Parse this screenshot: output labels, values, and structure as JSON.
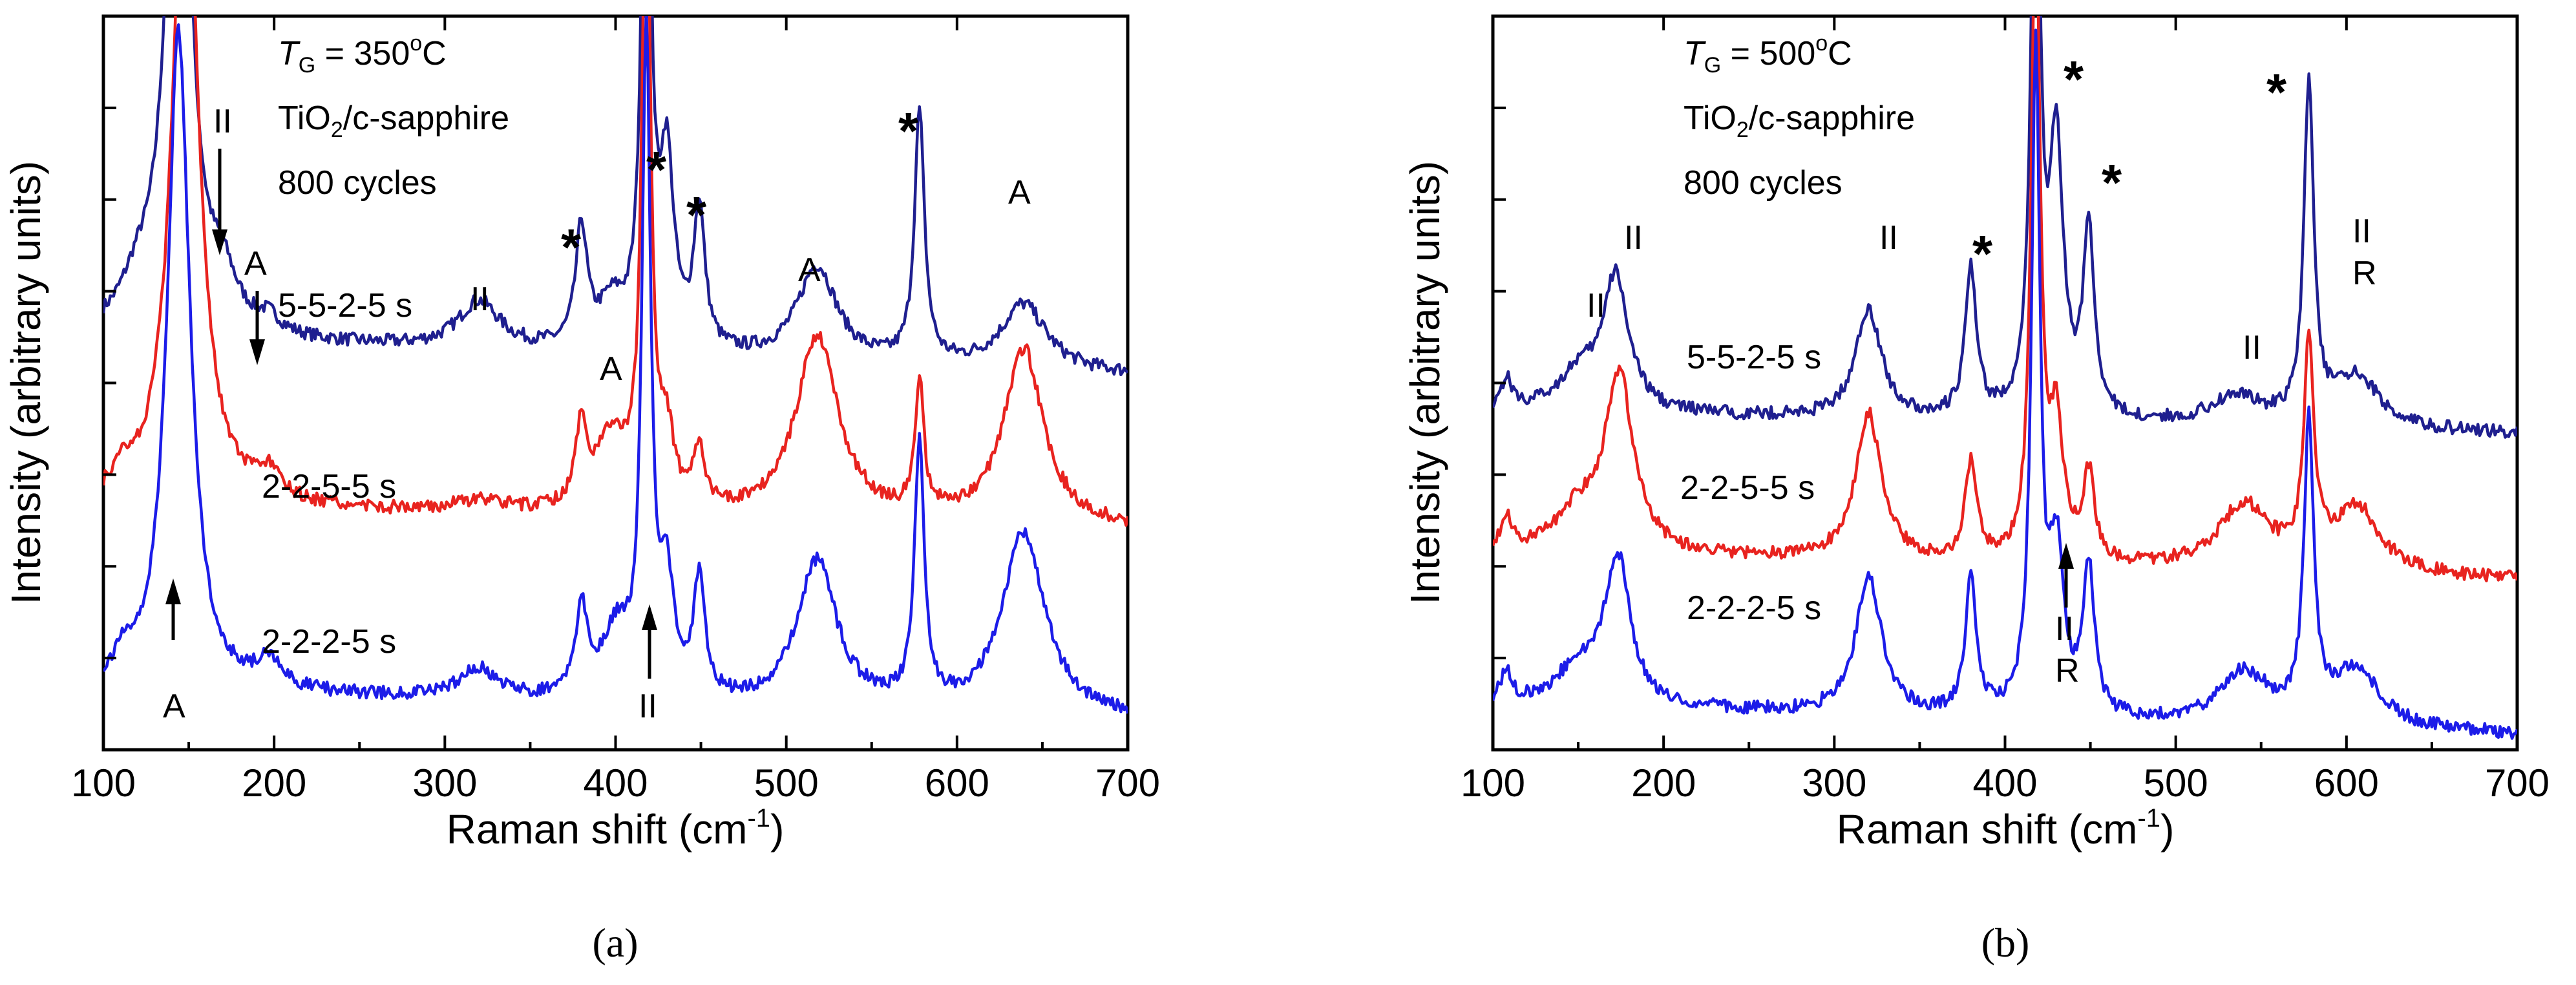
{
  "chart_data": [
    {
      "type": "line",
      "panel_label": "(a)",
      "xlabel": "Raman shift (cm",
      "xlabel_sup": "-1",
      "xlabel_end": ")",
      "ylabel": "Intensity (arbitrary units)",
      "xlim": [
        100,
        700
      ],
      "xticks": [
        100,
        200,
        300,
        400,
        500,
        600,
        700
      ],
      "info": {
        "tg_symbol": "T",
        "tg_sub": "G",
        "tg_value": " = 350",
        "tg_deg": "o",
        "tg_unit": "C",
        "material_a": "TiO",
        "material_sub": "2",
        "material_b": "/c-sapphire",
        "cycles": "800 cycles"
      },
      "series": [
        {
          "name": "5-5-2-5 s",
          "color": "#1f1f8f",
          "baseline": 0.56,
          "drift": 0.05,
          "peaks": [
            [
              120,
              0.05,
              12
            ],
            [
              144,
              0.9,
              8
            ],
            [
              170,
              0.06,
              10
            ],
            [
              197,
              0.02,
              8
            ],
            [
              320,
              0.065,
              15
            ],
            [
              380,
              0.16,
              4
            ],
            [
              398,
              0.06,
              10
            ],
            [
              418,
              0.9,
              3
            ],
            [
              430,
              0.25,
              5
            ],
            [
              449,
              0.19,
              4
            ],
            [
              518,
              0.13,
              14
            ],
            [
              578,
              0.34,
              3.5
            ],
            [
              639,
              0.09,
              16
            ]
          ]
        },
        {
          "name": "2-2-5-5 s",
          "color": "#e8231f",
          "baseline": 0.33,
          "drift": 0.03,
          "peaks": [
            [
              112,
              0.03,
              6
            ],
            [
              148,
              0.95,
              9
            ],
            [
              197,
              0.035,
              8
            ],
            [
              320,
              0.015,
              18
            ],
            [
              380,
              0.11,
              4
            ],
            [
              398,
              0.1,
              11
            ],
            [
              418,
              0.9,
              3
            ],
            [
              430,
              0.09,
              5
            ],
            [
              449,
              0.08,
              4
            ],
            [
              518,
              0.25,
              15
            ],
            [
              578,
              0.18,
              3
            ],
            [
              639,
              0.24,
              14
            ]
          ]
        },
        {
          "name": "2-2-2-5 s",
          "color": "#1c1ce8",
          "baseline": 0.08,
          "drift": 0.04,
          "peaks": [
            [
              112,
              0.03,
              6
            ],
            [
              144,
              0.9,
              8
            ],
            [
              197,
              0.04,
              8
            ],
            [
              320,
              0.04,
              14
            ],
            [
              380,
              0.12,
              4
            ],
            [
              400,
              0.09,
              10
            ],
            [
              418,
              0.9,
              3
            ],
            [
              430,
              0.15,
              5
            ],
            [
              449,
              0.16,
              4
            ],
            [
              518,
              0.2,
              14
            ],
            [
              578,
              0.35,
              3.5
            ],
            [
              639,
              0.25,
              15
            ]
          ]
        }
      ],
      "stars": [
        "*",
        "*",
        "*",
        "*"
      ],
      "labels": [
        "II",
        "A",
        "II",
        "A",
        "A",
        "A",
        "A",
        "II"
      ]
    },
    {
      "type": "line",
      "panel_label": "(b)",
      "xlabel": "Raman shift (cm",
      "xlabel_sup": "-1",
      "xlabel_end": ")",
      "ylabel": "Intensity (arbitrary units)",
      "xlim": [
        100,
        700
      ],
      "xticks": [
        100,
        200,
        300,
        400,
        500,
        600,
        700
      ],
      "info": {
        "tg_symbol": "T",
        "tg_sub": "G",
        "tg_value": " = 500",
        "tg_deg": "o",
        "tg_unit": "C",
        "material_a": "TiO",
        "material_sub": "2",
        "material_b": "/c-sapphire",
        "cycles": "800 cycles"
      },
      "series": [
        {
          "name": "5-5-2-5 s",
          "color": "#1f1f8f",
          "baseline": 0.46,
          "drift": 0.03,
          "peaks": [
            [
              108,
              0.04,
              4
            ],
            [
              150,
              0.05,
              15
            ],
            [
              172,
              0.18,
              9
            ],
            [
              320,
              0.15,
              9
            ],
            [
              380,
              0.2,
              4
            ],
            [
              418,
              0.9,
              3
            ],
            [
              430,
              0.36,
              5
            ],
            [
              449,
              0.25,
              4
            ],
            [
              535,
              0.04,
              18
            ],
            [
              578,
              0.46,
              3.5
            ],
            [
              606,
              0.07,
              16
            ]
          ]
        },
        {
          "name": "2-2-5-5 s",
          "color": "#e8231f",
          "baseline": 0.27,
          "drift": 0.04,
          "peaks": [
            [
              108,
              0.04,
              4
            ],
            [
              150,
              0.05,
              15
            ],
            [
              174,
              0.24,
              10
            ],
            [
              320,
              0.2,
              9
            ],
            [
              380,
              0.13,
              4
            ],
            [
              418,
              0.9,
              3
            ],
            [
              430,
              0.18,
              5
            ],
            [
              449,
              0.12,
              4
            ],
            [
              540,
              0.09,
              18
            ],
            [
              578,
              0.3,
              3.5
            ],
            [
              606,
              0.09,
              16
            ]
          ]
        },
        {
          "name": "2-2-2-5 s",
          "color": "#1c1ce8",
          "baseline": 0.06,
          "drift": 0.04,
          "peaks": [
            [
              108,
              0.04,
              4
            ],
            [
              150,
              0.05,
              15
            ],
            [
              173,
              0.2,
              9
            ],
            [
              320,
              0.19,
              9
            ],
            [
              380,
              0.18,
              4
            ],
            [
              418,
              0.9,
              3
            ],
            [
              430,
              0.22,
              5
            ],
            [
              449,
              0.2,
              4
            ],
            [
              540,
              0.07,
              18
            ],
            [
              578,
              0.4,
              3.5
            ],
            [
              606,
              0.08,
              16
            ]
          ]
        }
      ],
      "stars": [
        "*",
        "*",
        "*",
        "*"
      ],
      "labels": [
        "II",
        "II",
        "II",
        "II",
        "R",
        "II",
        "II",
        "R"
      ]
    }
  ]
}
